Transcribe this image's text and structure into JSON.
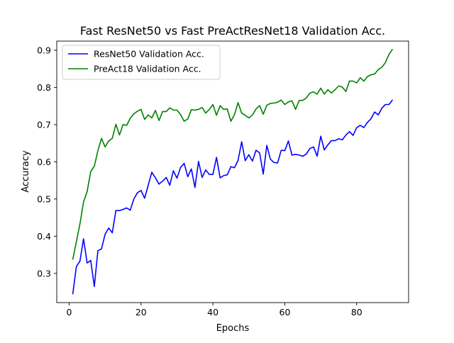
{
  "chart_data": {
    "type": "line",
    "title": "Fast ResNet50 vs Fast PreActResNet18 Validation Acc.",
    "xlabel": "Epochs",
    "ylabel": "Accuracy",
    "xlim": [
      -3.45,
      94.45
    ],
    "ylim": [
      0.2215,
      0.9245
    ],
    "xticks": [
      0,
      20,
      40,
      60,
      80
    ],
    "yticks": [
      0.3,
      0.4,
      0.5,
      0.6,
      0.7,
      0.8,
      0.9
    ],
    "legend_position": "upper-left",
    "grid": false,
    "x": [
      1,
      2,
      3,
      4,
      5,
      6,
      7,
      8,
      9,
      10,
      11,
      12,
      13,
      14,
      15,
      16,
      17,
      18,
      19,
      20,
      21,
      22,
      23,
      24,
      25,
      26,
      27,
      28,
      29,
      30,
      31,
      32,
      33,
      34,
      35,
      36,
      37,
      38,
      39,
      40,
      41,
      42,
      43,
      44,
      45,
      46,
      47,
      48,
      49,
      50,
      51,
      52,
      53,
      54,
      55,
      56,
      57,
      58,
      59,
      60,
      61,
      62,
      63,
      64,
      65,
      66,
      67,
      68,
      69,
      70,
      71,
      72,
      73,
      74,
      75,
      76,
      77,
      78,
      79,
      80,
      81,
      82,
      83,
      84,
      85,
      86,
      87,
      88,
      89,
      90
    ],
    "series": [
      {
        "name": "ResNet50 Validation Acc.",
        "color": "#0000ff",
        "values": [
          0.244,
          0.318,
          0.333,
          0.393,
          0.328,
          0.335,
          0.265,
          0.361,
          0.366,
          0.405,
          0.422,
          0.409,
          0.469,
          0.469,
          0.472,
          0.476,
          0.47,
          0.5,
          0.517,
          0.523,
          0.502,
          0.537,
          0.572,
          0.557,
          0.54,
          0.548,
          0.558,
          0.537,
          0.576,
          0.556,
          0.585,
          0.596,
          0.56,
          0.581,
          0.531,
          0.601,
          0.558,
          0.578,
          0.566,
          0.566,
          0.612,
          0.557,
          0.563,
          0.565,
          0.587,
          0.584,
          0.604,
          0.654,
          0.603,
          0.619,
          0.602,
          0.631,
          0.624,
          0.567,
          0.644,
          0.607,
          0.598,
          0.597,
          0.631,
          0.63,
          0.656,
          0.618,
          0.62,
          0.618,
          0.615,
          0.621,
          0.636,
          0.64,
          0.615,
          0.669,
          0.632,
          0.646,
          0.657,
          0.657,
          0.662,
          0.659,
          0.672,
          0.681,
          0.671,
          0.692,
          0.698,
          0.692,
          0.706,
          0.716,
          0.734,
          0.726,
          0.744,
          0.754,
          0.754,
          0.767
        ]
      },
      {
        "name": "PreAct18 Validation Acc.",
        "color": "#008000",
        "values": [
          0.337,
          0.385,
          0.433,
          0.492,
          0.52,
          0.574,
          0.588,
          0.63,
          0.663,
          0.64,
          0.656,
          0.663,
          0.701,
          0.672,
          0.7,
          0.698,
          0.717,
          0.729,
          0.736,
          0.741,
          0.714,
          0.726,
          0.718,
          0.738,
          0.711,
          0.735,
          0.735,
          0.745,
          0.739,
          0.739,
          0.727,
          0.709,
          0.715,
          0.74,
          0.739,
          0.741,
          0.746,
          0.731,
          0.741,
          0.754,
          0.725,
          0.751,
          0.741,
          0.742,
          0.709,
          0.727,
          0.759,
          0.731,
          0.725,
          0.718,
          0.726,
          0.742,
          0.751,
          0.728,
          0.752,
          0.757,
          0.758,
          0.76,
          0.766,
          0.754,
          0.761,
          0.764,
          0.741,
          0.765,
          0.765,
          0.772,
          0.785,
          0.788,
          0.782,
          0.798,
          0.782,
          0.794,
          0.785,
          0.794,
          0.804,
          0.801,
          0.789,
          0.817,
          0.817,
          0.812,
          0.826,
          0.817,
          0.829,
          0.834,
          0.836,
          0.848,
          0.854,
          0.867,
          0.889,
          0.903
        ]
      }
    ]
  }
}
